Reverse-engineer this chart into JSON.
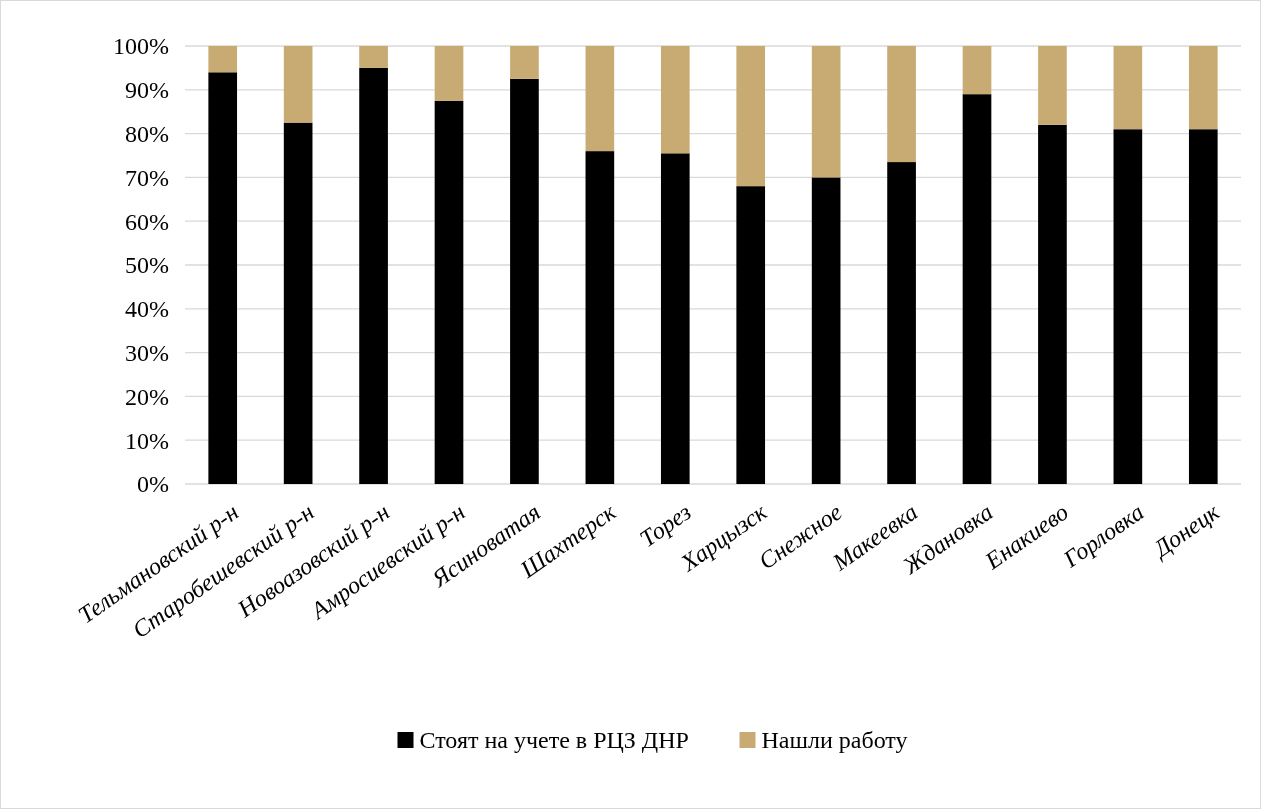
{
  "chart_data": {
    "type": "bar",
    "stacked": true,
    "categories": [
      "Тельмановский р-н",
      "Старобешевский р-н",
      "Новоазовский р-н",
      "Амросиевский р-н",
      "Ясиноватая",
      "Шахтерск",
      "Торез",
      "Харцызск",
      "Снежное",
      "Макеевка",
      "Ждановка",
      "Енакиево",
      "Горловка",
      "Донецк"
    ],
    "series": [
      {
        "name": "Стоят на учете в РЦЗ ДНР",
        "color": "#000000",
        "values": [
          94,
          82.5,
          95,
          87.5,
          92.5,
          76,
          75.5,
          68,
          70,
          73.5,
          89,
          82,
          81,
          81
        ]
      },
      {
        "name": "Нашли работу",
        "color": "#c8ab72",
        "values": [
          6,
          17.5,
          5,
          12.5,
          7.5,
          24,
          24.5,
          32,
          30,
          26.5,
          11,
          18,
          19,
          19
        ]
      }
    ],
    "ylim": [
      0,
      100
    ],
    "yticks": [
      {
        "value": 0,
        "label": "0%"
      },
      {
        "value": 10,
        "label": "10%"
      },
      {
        "value": 20,
        "label": "20%"
      },
      {
        "value": 30,
        "label": "30%"
      },
      {
        "value": 40,
        "label": "40%"
      },
      {
        "value": 50,
        "label": "50%"
      },
      {
        "value": 60,
        "label": "60%"
      },
      {
        "value": 70,
        "label": "70%"
      },
      {
        "value": 80,
        "label": "80%"
      },
      {
        "value": 90,
        "label": "90%"
      },
      {
        "value": 100,
        "label": "100%"
      }
    ],
    "grid": "y",
    "legend": "bottom"
  }
}
